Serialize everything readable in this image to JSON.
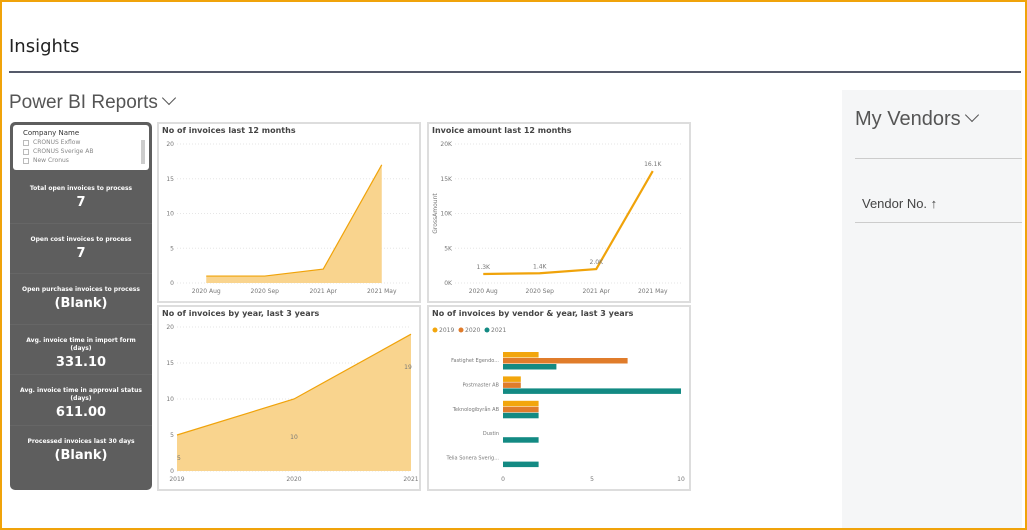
{
  "page": {
    "title": "Insights",
    "section": "Power BI Reports"
  },
  "slicer": {
    "label": "Company Name",
    "options": [
      "CRONUS Exflow",
      "CRONUS Sverige AB",
      "New Cronus"
    ]
  },
  "kpis": [
    {
      "label": "Total open invoices to process",
      "value": "7"
    },
    {
      "label": "Open cost invoices to process",
      "value": "7"
    },
    {
      "label": "Open purchase invoices to process",
      "value": "(Blank)"
    },
    {
      "label": "Avg. invoice time in import form (days)",
      "value": "331.10"
    },
    {
      "label": "Avg. invoice time in approval status (days)",
      "value": "611.00"
    },
    {
      "label": "Processed invoices last 30 days",
      "value": "(Blank)"
    }
  ],
  "vendors": {
    "title": "My Vendors",
    "column": "Vendor No. ↑"
  },
  "colors": {
    "area": "#f9d48e",
    "line": "#f0a30a",
    "2019": "#f2a60d",
    "2020": "#e07c2b",
    "2021": "#138a83"
  },
  "chart_data": [
    {
      "type": "area",
      "title": "No of invoices last 12 months",
      "categories": [
        "2020 Aug",
        "2020 Sep",
        "2021 Apr",
        "2021 May"
      ],
      "values": [
        1,
        1,
        2,
        17
      ],
      "ylim": [
        0,
        20
      ],
      "yticks": [
        "0",
        "5",
        "10",
        "15",
        "20"
      ],
      "grid": true
    },
    {
      "type": "line",
      "title": "Invoice amount last 12 months",
      "ylabel": "GrossAmount",
      "categories": [
        "2020 Aug",
        "2020 Sep",
        "2021 Apr",
        "2021 May"
      ],
      "values": [
        1300,
        1400,
        2000,
        16100
      ],
      "labels": [
        "1.3K",
        "1.4K",
        "2.0K",
        "16.1K"
      ],
      "ylim": [
        0,
        20000
      ],
      "yticks": [
        "0K",
        "5K",
        "10K",
        "15K",
        "20K"
      ],
      "grid": true
    },
    {
      "type": "area",
      "title": "No of invoices by year, last 3 years",
      "categories": [
        "2019",
        "2020",
        "2021"
      ],
      "values": [
        5,
        10,
        19
      ],
      "labels": [
        "5",
        "10",
        "19"
      ],
      "ylim": [
        0,
        20
      ],
      "yticks": [
        "0",
        "5",
        "10",
        "15",
        "20"
      ],
      "grid": true
    },
    {
      "type": "bar",
      "orientation": "horizontal",
      "title": "No of invoices by vendor & year, last 3 years",
      "categories": [
        "Fastighet Egendo...",
        "Postmaster AB",
        "Teknologibyrån AB",
        "Dustin",
        "Telia Sonera Sverig..."
      ],
      "series": [
        {
          "name": "2019",
          "values": [
            2,
            1,
            2,
            0,
            0
          ]
        },
        {
          "name": "2020",
          "values": [
            7,
            1,
            2,
            0,
            0
          ]
        },
        {
          "name": "2021",
          "values": [
            3,
            10,
            2,
            2,
            2
          ]
        }
      ],
      "xlim": [
        0,
        10
      ],
      "xticks": [
        "0",
        "5",
        "10"
      ],
      "legend": "top-left"
    }
  ]
}
